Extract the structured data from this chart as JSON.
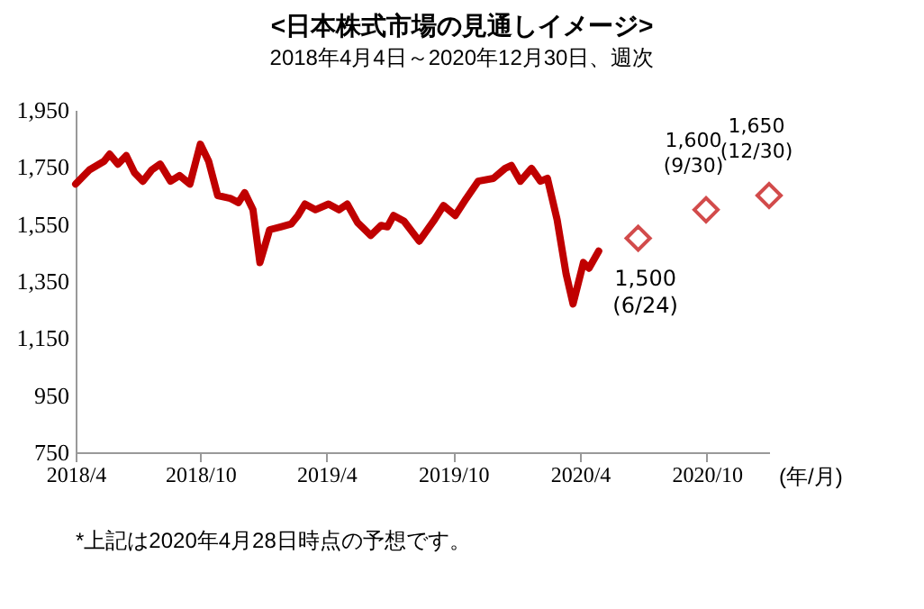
{
  "chart_data": {
    "type": "line",
    "title": "<日本株式市場の見通しイメージ>",
    "subtitle": "2018年4月4日～2020年12月30日、週次",
    "xlabel": "(年/月)",
    "xlim": [
      "2018-04-04",
      "2020-12-30"
    ],
    "xticks": [
      {
        "value": "2018-04-04",
        "label": "2018/4"
      },
      {
        "value": "2018-10-01",
        "label": "2018/10"
      },
      {
        "value": "2019-04-01",
        "label": "2019/4"
      },
      {
        "value": "2019-10-01",
        "label": "2019/10"
      },
      {
        "value": "2020-04-01",
        "label": "2020/4"
      },
      {
        "value": "2020-10-01",
        "label": "2020/10"
      }
    ],
    "ylim": [
      750,
      1950
    ],
    "yticks": [
      {
        "value": 750,
        "label": "750"
      },
      {
        "value": 950,
        "label": "950"
      },
      {
        "value": 1150,
        "label": "1,150"
      },
      {
        "value": 1350,
        "label": "1,350"
      },
      {
        "value": 1550,
        "label": "1,550"
      },
      {
        "value": 1750,
        "label": "1,750"
      },
      {
        "value": 1950,
        "label": "1,950"
      }
    ],
    "grid": false,
    "legend": false,
    "series": [
      {
        "type": "line",
        "color": "#c00000",
        "marker": "none",
        "x": [
          "2018-04-04",
          "2018-04-24",
          "2018-05-15",
          "2018-05-23",
          "2018-06-04",
          "2018-06-16",
          "2018-06-28",
          "2018-07-10",
          "2018-07-23",
          "2018-08-04",
          "2018-08-19",
          "2018-09-01",
          "2018-09-16",
          "2018-10-01",
          "2018-10-13",
          "2018-10-26",
          "2018-11-13",
          "2018-11-25",
          "2018-12-04",
          "2018-12-16",
          "2018-12-26",
          "2019-01-09",
          "2019-01-25",
          "2019-02-09",
          "2019-02-19",
          "2019-03-01",
          "2019-03-16",
          "2019-04-04",
          "2019-04-19",
          "2019-05-01",
          "2019-05-16",
          "2019-06-04",
          "2019-06-19",
          "2019-06-28",
          "2019-07-07",
          "2019-07-22",
          "2019-08-13",
          "2019-09-04",
          "2019-09-17",
          "2019-10-04",
          "2019-10-20",
          "2019-11-06",
          "2019-11-28",
          "2019-12-15",
          "2019-12-24",
          "2020-01-06",
          "2020-01-22",
          "2020-02-04",
          "2020-02-14",
          "2020-02-28",
          "2020-03-12",
          "2020-03-22",
          "2020-04-06",
          "2020-04-14",
          "2020-04-28"
        ],
        "values": [
          1690,
          1740,
          1770,
          1795,
          1760,
          1790,
          1730,
          1700,
          1740,
          1760,
          1700,
          1720,
          1690,
          1830,
          1770,
          1650,
          1640,
          1625,
          1660,
          1600,
          1415,
          1530,
          1540,
          1550,
          1580,
          1620,
          1600,
          1620,
          1600,
          1620,
          1555,
          1510,
          1545,
          1540,
          1580,
          1560,
          1490,
          1565,
          1615,
          1580,
          1640,
          1700,
          1710,
          1745,
          1755,
          1700,
          1745,
          1700,
          1710,
          1565,
          1375,
          1270,
          1415,
          1395,
          1455
        ]
      },
      {
        "type": "scatter",
        "color": "#c00000",
        "marker": "diamond",
        "x": [
          "2020-06-24",
          "2020-09-30",
          "2020-12-30"
        ],
        "values": [
          1500,
          1600,
          1650
        ],
        "value_labels": [
          "1,500",
          "1,600",
          "1,650"
        ]
      }
    ],
    "annotations": [
      {
        "text": "(6/24)",
        "x": "2020-06-24",
        "y": 1500
      },
      {
        "text": "(9/30)",
        "x": "2020-09-30",
        "y": 1600
      },
      {
        "text": "(12/30)",
        "x": "2020-12-30",
        "y": 1650
      },
      "*上記は2020年4月28日時点の予想です。"
    ]
  }
}
